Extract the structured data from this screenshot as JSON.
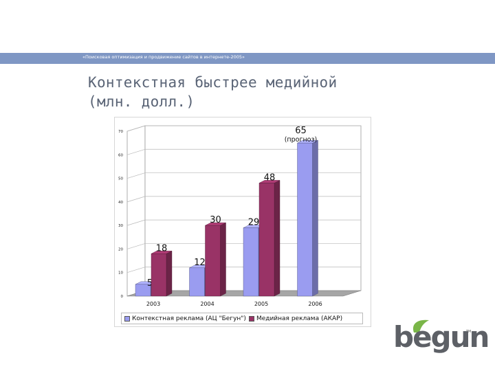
{
  "header": {
    "text": "«Поисковая оптимизация и продвижение сайтов в интернете-2005»",
    "bar_color": "#7f97c4"
  },
  "slide_title": {
    "line1": "Контекстная быстрее медийной",
    "line2": "(млн. долл.)"
  },
  "chart_data": {
    "type": "bar",
    "categories": [
      "2003",
      "2004",
      "2005",
      "2006"
    ],
    "series": [
      {
        "name": "Контекстная реклама (АЦ \"Бегун\")",
        "values": [
          5,
          12,
          29,
          65
        ],
        "color": "#9a9cf0"
      },
      {
        "name": "Медийная реклама (АКАР)",
        "values": [
          18,
          30,
          48,
          null
        ],
        "color": "#993366"
      }
    ],
    "ylim": [
      0,
      70
    ],
    "yticks": [
      "0",
      "10",
      "20",
      "30",
      "40",
      "50",
      "60",
      "70"
    ],
    "annotation": "(прогноз)",
    "grid": true,
    "legend_position": "bottom",
    "title": "",
    "xlabel": "",
    "ylabel": ""
  },
  "logo": {
    "text": "begun",
    "tm": "TM",
    "leaf_color": "#7ab648"
  }
}
